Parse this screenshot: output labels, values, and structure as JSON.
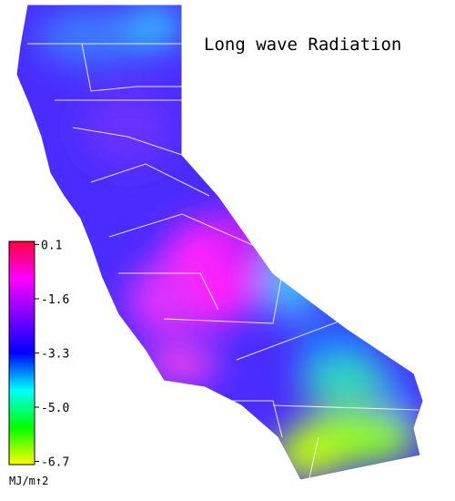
{
  "title": "Long wave Radiation",
  "colorbar": {
    "unit": "MJ/m↑2",
    "range": [
      -6.8,
      0.2
    ],
    "ticks": [
      0.1,
      -1.6,
      -3.3,
      {
        "value": -5.0,
        "label": "-5.0"
      },
      -6.7
    ],
    "colormap": [
      "#ffff00",
      "#00ff00",
      "#00ffff",
      "#0000ff",
      "#8000ff",
      "#ff00ff",
      "#ff0040"
    ]
  }
}
